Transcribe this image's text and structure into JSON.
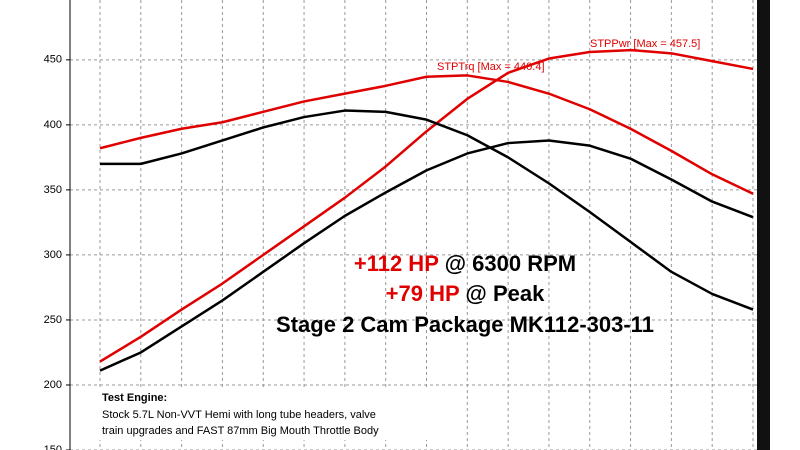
{
  "chart_data": {
    "type": "line",
    "categories": [
      null,
      null,
      null,
      null,
      null,
      null,
      null,
      null,
      null,
      null,
      null,
      null,
      null,
      null,
      null,
      null,
      null
    ],
    "series": [
      {
        "color": "#e00000",
        "values": [
          382,
          390,
          397,
          402,
          410,
          418,
          424,
          430,
          437,
          438,
          433,
          424,
          412,
          397,
          380,
          362,
          347
        ]
      },
      {
        "color": "#e00000",
        "values": [
          218,
          237,
          258,
          278,
          300,
          322,
          344,
          368,
          395,
          420,
          440,
          451,
          456,
          457.5,
          455,
          449,
          443
        ]
      },
      {
        "color": "#000000",
        "values": [
          370,
          370,
          378,
          388,
          398,
          406,
          411,
          410,
          404,
          392,
          375,
          355,
          333,
          310,
          287,
          270,
          258
        ]
      },
      {
        "color": "#000000",
        "values": [
          211,
          225,
          245,
          265,
          287,
          309,
          330,
          348,
          365,
          378,
          386,
          388,
          384,
          374,
          358,
          341,
          329
        ]
      }
    ],
    "ylim": [
      150,
      496
    ],
    "yticks": [
      150,
      200,
      250,
      300,
      350,
      400,
      450
    ],
    "grid": true,
    "annotations": [
      "STPTrq [Max = 440.4]",
      "STPPwr [Max = 457.5]"
    ],
    "headline": [
      {
        "highlight": "+112 HP",
        "text": "@ 6300 RPM"
      },
      {
        "highlight": "+79 HP",
        "text": "@ Peak"
      }
    ],
    "subheadline": "Stage 2 Cam Package MK112-303-11",
    "note": {
      "title": "Test Engine:",
      "lines": [
        "Stock 5.7L Non-VVT Hemi with long tube headers, valve",
        "train upgrades and FAST 87mm Big Mouth Throttle Body"
      ]
    }
  }
}
